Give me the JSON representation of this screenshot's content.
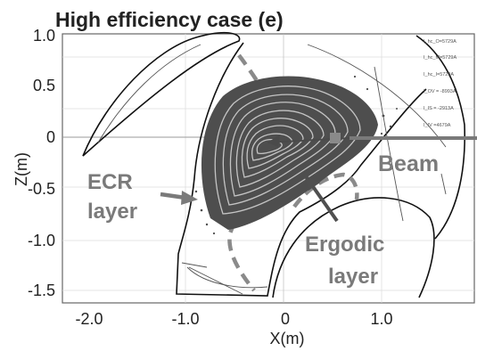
{
  "title": "High efficiency case (e)",
  "axes": {
    "xlabel": "X(m)",
    "ylabel": "Z(m)",
    "x_ticks": [
      {
        "value": -2.0,
        "label": "-2.0"
      },
      {
        "value": -1.0,
        "label": "-1.0"
      },
      {
        "value": 0.0,
        "label": "0"
      },
      {
        "value": 1.0,
        "label": "1.0"
      }
    ],
    "y_ticks": [
      {
        "value": 1.0,
        "label": "1.0"
      },
      {
        "value": 0.5,
        "label": "0.5"
      },
      {
        "value": 0.0,
        "label": "0"
      },
      {
        "value": -0.5,
        "label": "-0.5"
      },
      {
        "value": -1.0,
        "label": "-1.0"
      },
      {
        "value": -1.5,
        "label": "-1.5"
      }
    ],
    "xlim": [
      -2.3,
      1.9
    ],
    "ylim": [
      -1.65,
      1.05
    ]
  },
  "annotations": {
    "beam": "Beam",
    "ecr_line1": "ECR",
    "ecr_line2": "layer",
    "ergodic_line1": "Ergodic",
    "ergodic_line2": "layer"
  },
  "coil_labels": [
    "I_hc_O=5729A",
    "I_hc_M=5729A",
    "I_hc_I=5729A",
    "I_OV = -8993A",
    "I_IS = -2913A",
    "I_IV =4679A"
  ],
  "colors": {
    "text": "#222222",
    "annotation": "#7a7a7a",
    "plasma": "#555555",
    "vessel": "#111111",
    "grid": "#dddddd"
  }
}
